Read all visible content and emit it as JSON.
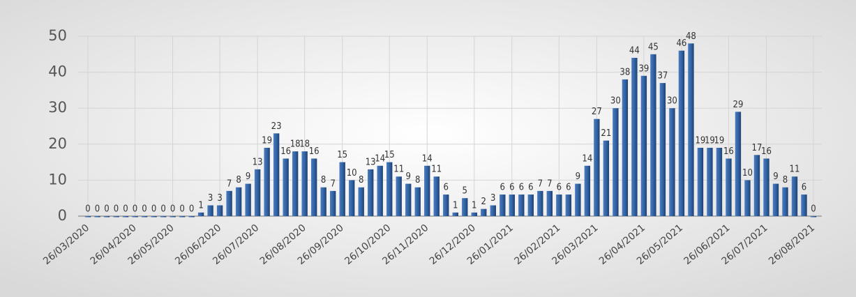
{
  "chart_data": {
    "type": "bar",
    "categories": [
      "26/03/2020",
      null,
      null,
      null,
      null,
      "26/04/2020",
      null,
      null,
      null,
      "26/05/2020",
      null,
      null,
      null,
      null,
      "26/06/2020",
      null,
      null,
      null,
      "26/07/2020",
      null,
      null,
      null,
      null,
      "26/08/2020",
      null,
      null,
      null,
      "26/09/2020",
      null,
      null,
      null,
      null,
      "26/10/2020",
      null,
      null,
      null,
      "26/11/2020",
      null,
      null,
      null,
      null,
      "26/12/2020",
      null,
      null,
      null,
      "26/01/2021",
      null,
      null,
      null,
      null,
      "26/02/2021",
      null,
      null,
      null,
      "26/03/2021",
      null,
      null,
      null,
      null,
      "26/04/2021",
      null,
      null,
      null,
      "26/05/2021",
      null,
      null,
      null,
      null,
      "26/06/2021",
      null,
      null,
      null,
      "26/07/2021",
      null,
      null,
      null,
      null,
      "26/08/2021"
    ],
    "values": [
      0,
      0,
      0,
      0,
      0,
      0,
      0,
      0,
      0,
      0,
      0,
      0,
      1,
      3,
      3,
      7,
      8,
      9,
      13,
      19,
      23,
      16,
      18,
      18,
      16,
      8,
      7,
      15,
      10,
      8,
      13,
      14,
      15,
      11,
      9,
      8,
      14,
      11,
      6,
      1,
      5,
      1,
      2,
      3,
      6,
      6,
      6,
      6,
      7,
      7,
      6,
      6,
      9,
      14,
      27,
      21,
      30,
      38,
      44,
      39,
      45,
      37,
      30,
      46,
      48,
      19,
      19,
      19,
      16,
      29,
      10,
      17,
      16,
      9,
      8,
      11,
      6,
      0
    ],
    "color": "#2f5f9e",
    "ylim": [
      0,
      50
    ],
    "yticks": [
      0,
      10,
      20,
      30,
      40,
      50
    ],
    "grid": true
  }
}
